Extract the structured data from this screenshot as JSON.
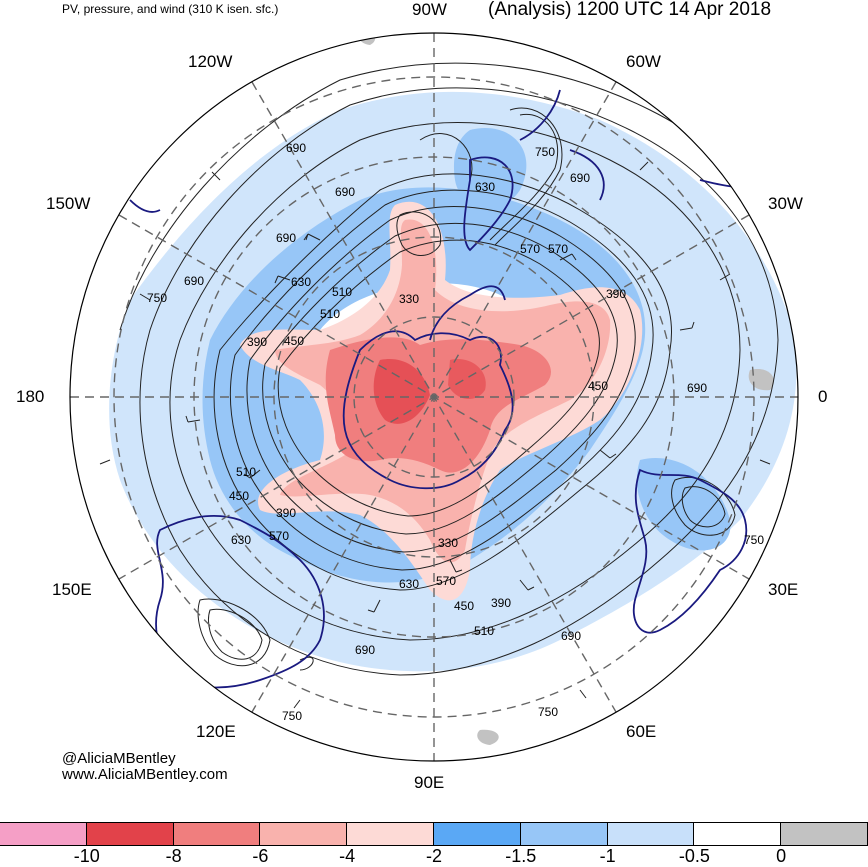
{
  "header": {
    "left": "PV, pressure, and wind (310 K isen. sfc.)",
    "right": "(Analysis) 1200 UTC 14 Apr 2018"
  },
  "longitude_labels": {
    "lon_90w": "90W",
    "lon_60w": "60W",
    "lon_30w": "30W",
    "lon_0": "0",
    "lon_30e": "30E",
    "lon_60e": "60E",
    "lon_90e": "90E",
    "lon_120e": "120E",
    "lon_150e": "150E",
    "lon_180": "180",
    "lon_150w": "150W",
    "lon_120w": "120W"
  },
  "pressure_labels": [
    "690",
    "750",
    "630",
    "570",
    "510",
    "450",
    "390",
    "330",
    "690",
    "690",
    "630",
    "510",
    "450",
    "390",
    "630",
    "570",
    "510",
    "390",
    "450",
    "330",
    "570",
    "630",
    "510",
    "390",
    "450",
    "690",
    "690",
    "750",
    "750",
    "690",
    "750",
    "690",
    "570",
    "750",
    "690"
  ],
  "credits": {
    "twitter": "@AliciaMBentley",
    "website": "www.AliciaMBentley.com"
  },
  "colorbar": {
    "colors": [
      "#f59fc6",
      "#e2424a",
      "#f07e7e",
      "#f9b2ad",
      "#fddad6",
      "#5aa8f5",
      "#97c6f7",
      "#c8e0fa",
      "#ffffff",
      "#c2c2c2"
    ],
    "labels": [
      "-10",
      "-8",
      "-6",
      "-4",
      "-2",
      "-1.5",
      "-1",
      "-0.5",
      "0"
    ]
  }
}
